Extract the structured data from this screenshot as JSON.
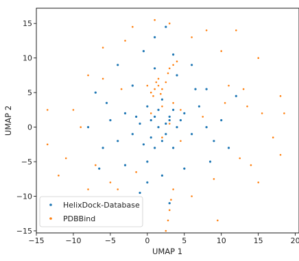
{
  "chart_data": {
    "type": "scatter",
    "xlabel": "UMAP 1",
    "ylabel": "UMAP 2",
    "xlim": [
      -15,
      20.5
    ],
    "ylim": [
      -15.3,
      17.2
    ],
    "xticks": [
      -15,
      -10,
      -5,
      0,
      5,
      10,
      15,
      20
    ],
    "yticks": [
      -15,
      -10,
      -5,
      0,
      5,
      10,
      15
    ],
    "grid": false,
    "legend_position": "lower-left",
    "series": [
      {
        "name": "HelixDock-Database",
        "color": "#1f77b4",
        "points": [
          [
            0.5,
            1.0
          ],
          [
            1.5,
            0.0
          ],
          [
            2.5,
            -1.0
          ],
          [
            3.0,
            1.5
          ],
          [
            -1.0,
            0.5
          ],
          [
            0.0,
            3.0
          ],
          [
            4.0,
            0.0
          ],
          [
            -2.0,
            -1.0
          ],
          [
            1.0,
            -3.0
          ],
          [
            2.0,
            4.0
          ],
          [
            5.0,
            2.0
          ],
          [
            6.0,
            -1.0
          ],
          [
            -3.0,
            2.0
          ],
          [
            3.5,
            -3.0
          ],
          [
            0.0,
            -5.0
          ],
          [
            7.0,
            3.0
          ],
          [
            -4.0,
            -2.0
          ],
          [
            6.5,
            5.5
          ],
          [
            -5.0,
            1.0
          ],
          [
            8.0,
            0.0
          ],
          [
            -6.0,
            -3.0
          ],
          [
            4.0,
            7.5
          ],
          [
            1.0,
            8.5
          ],
          [
            -2.0,
            6.0
          ],
          [
            9.0,
            -2.0
          ],
          [
            2.0,
            -7.0
          ],
          [
            -3.0,
            -5.5
          ],
          [
            3.5,
            10.5
          ],
          [
            1.0,
            13.0
          ],
          [
            -4.0,
            9.0
          ],
          [
            6.0,
            9.0
          ],
          [
            12.0,
            4.5
          ],
          [
            -8.0,
            0.0
          ],
          [
            0.0,
            -8.0
          ],
          [
            8.0,
            5.5
          ],
          [
            5.0,
            -6.0
          ],
          [
            -1.0,
            -9.5
          ],
          [
            3.0,
            -11.0
          ],
          [
            -7.0,
            5.0
          ],
          [
            10.0,
            1.0
          ],
          [
            -6.5,
            -6.0
          ],
          [
            8.5,
            -5.0
          ],
          [
            2.5,
            14.5
          ],
          [
            -0.5,
            11.0
          ],
          [
            11.0,
            -3.0
          ],
          [
            -5.5,
            3.5
          ],
          [
            3.0,
            1.0
          ],
          [
            1.5,
            2.5
          ],
          [
            0.5,
            -1.5
          ],
          [
            2.0,
            -2.0
          ],
          [
            -1.5,
            1.5
          ],
          [
            4.5,
            1.0
          ],
          [
            2.5,
            0.5
          ],
          [
            -0.5,
            -2.5
          ],
          [
            1.0,
            1.5
          ],
          [
            3.5,
            2.5
          ]
        ]
      },
      {
        "name": "PDBBind",
        "color": "#ff7f0e",
        "points": [
          [
            1.0,
            5.5
          ],
          [
            1.5,
            6.0
          ],
          [
            0.5,
            5.0
          ],
          [
            2.0,
            5.5
          ],
          [
            1.2,
            6.5
          ],
          [
            0.8,
            4.5
          ],
          [
            1.8,
            4.8
          ],
          [
            2.5,
            6.5
          ],
          [
            0.0,
            6.0
          ],
          [
            1.5,
            7.0
          ],
          [
            3.0,
            8.5
          ],
          [
            3.5,
            9.0
          ],
          [
            2.8,
            7.8
          ],
          [
            4.0,
            9.5
          ],
          [
            2.0,
            3.0
          ],
          [
            3.5,
            3.5
          ],
          [
            4.5,
            2.5
          ],
          [
            0.5,
            2.0
          ],
          [
            3.0,
            0.5
          ],
          [
            2.0,
            -1.5
          ],
          [
            4.5,
            -2.0
          ],
          [
            3.5,
            -9.0
          ],
          [
            3.2,
            -10.5
          ],
          [
            3.0,
            -12.0
          ],
          [
            2.8,
            -13.5
          ],
          [
            2.5,
            -15.0
          ],
          [
            6.0,
            -10.0
          ],
          [
            9.5,
            -13.5
          ],
          [
            -13.5,
            2.5
          ],
          [
            -12.0,
            -7.0
          ],
          [
            -13.5,
            -2.5
          ],
          [
            -11.0,
            -4.5
          ],
          [
            -10.0,
            2.5
          ],
          [
            -8.0,
            7.5
          ],
          [
            -6.0,
            11.5
          ],
          [
            -7.0,
            -5.5
          ],
          [
            -5.0,
            -8.0
          ],
          [
            -3.0,
            12.5
          ],
          [
            -4.0,
            -9.0
          ],
          [
            -2.0,
            14.5
          ],
          [
            1.0,
            15.5
          ],
          [
            3.0,
            15.0
          ],
          [
            6.0,
            13.0
          ],
          [
            8.0,
            14.0
          ],
          [
            10.0,
            11.0
          ],
          [
            12.0,
            14.0
          ],
          [
            13.0,
            5.5
          ],
          [
            15.0,
            10.0
          ],
          [
            13.5,
            3.0
          ],
          [
            15.5,
            2.0
          ],
          [
            18.0,
            4.5
          ],
          [
            18.5,
            2.0
          ],
          [
            17.0,
            -1.5
          ],
          [
            18.0,
            -4.0
          ],
          [
            15.0,
            -8.0
          ],
          [
            12.5,
            -4.5
          ],
          [
            9.0,
            -7.5
          ],
          [
            11.0,
            6.0
          ],
          [
            -9.0,
            0.0
          ],
          [
            -1.5,
            -6.5
          ],
          [
            10.5,
            3.5
          ],
          [
            7.5,
            1.5
          ],
          [
            -6.0,
            7.0
          ],
          [
            -8.0,
            -9.0
          ],
          [
            14.0,
            -5.5
          ],
          [
            -3.5,
            5.5
          ]
        ]
      }
    ]
  }
}
